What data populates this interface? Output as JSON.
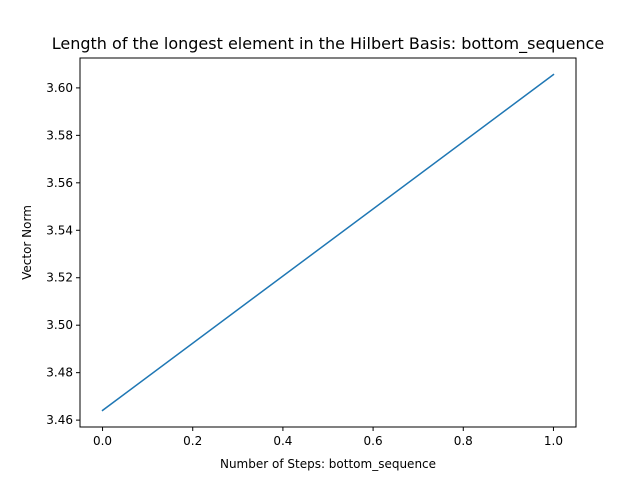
{
  "colors": {
    "line": "#1f77b4",
    "axes": "#000000",
    "background": "#ffffff"
  },
  "chart_data": {
    "type": "line",
    "title": "Length of the longest element in the Hilbert Basis: bottom_sequence",
    "xlabel": "Number of Steps: bottom_sequence",
    "ylabel": "Vector Norm",
    "grid": false,
    "xlim": [
      -0.05,
      1.05
    ],
    "ylim": [
      3.4571,
      3.6126
    ],
    "xticks": [
      0.0,
      0.2,
      0.4,
      0.6,
      0.8,
      1.0
    ],
    "xtick_labels": [
      "0.0",
      "0.2",
      "0.4",
      "0.6",
      "0.8",
      "1.0"
    ],
    "yticks": [
      3.46,
      3.48,
      3.5,
      3.52,
      3.54,
      3.56,
      3.58,
      3.6
    ],
    "ytick_labels": [
      "3.46",
      "3.48",
      "3.50",
      "3.52",
      "3.54",
      "3.56",
      "3.58",
      "3.60"
    ],
    "series": [
      {
        "x": [
          0,
          1
        ],
        "values": [
          3.4641,
          3.6056
        ]
      }
    ]
  }
}
